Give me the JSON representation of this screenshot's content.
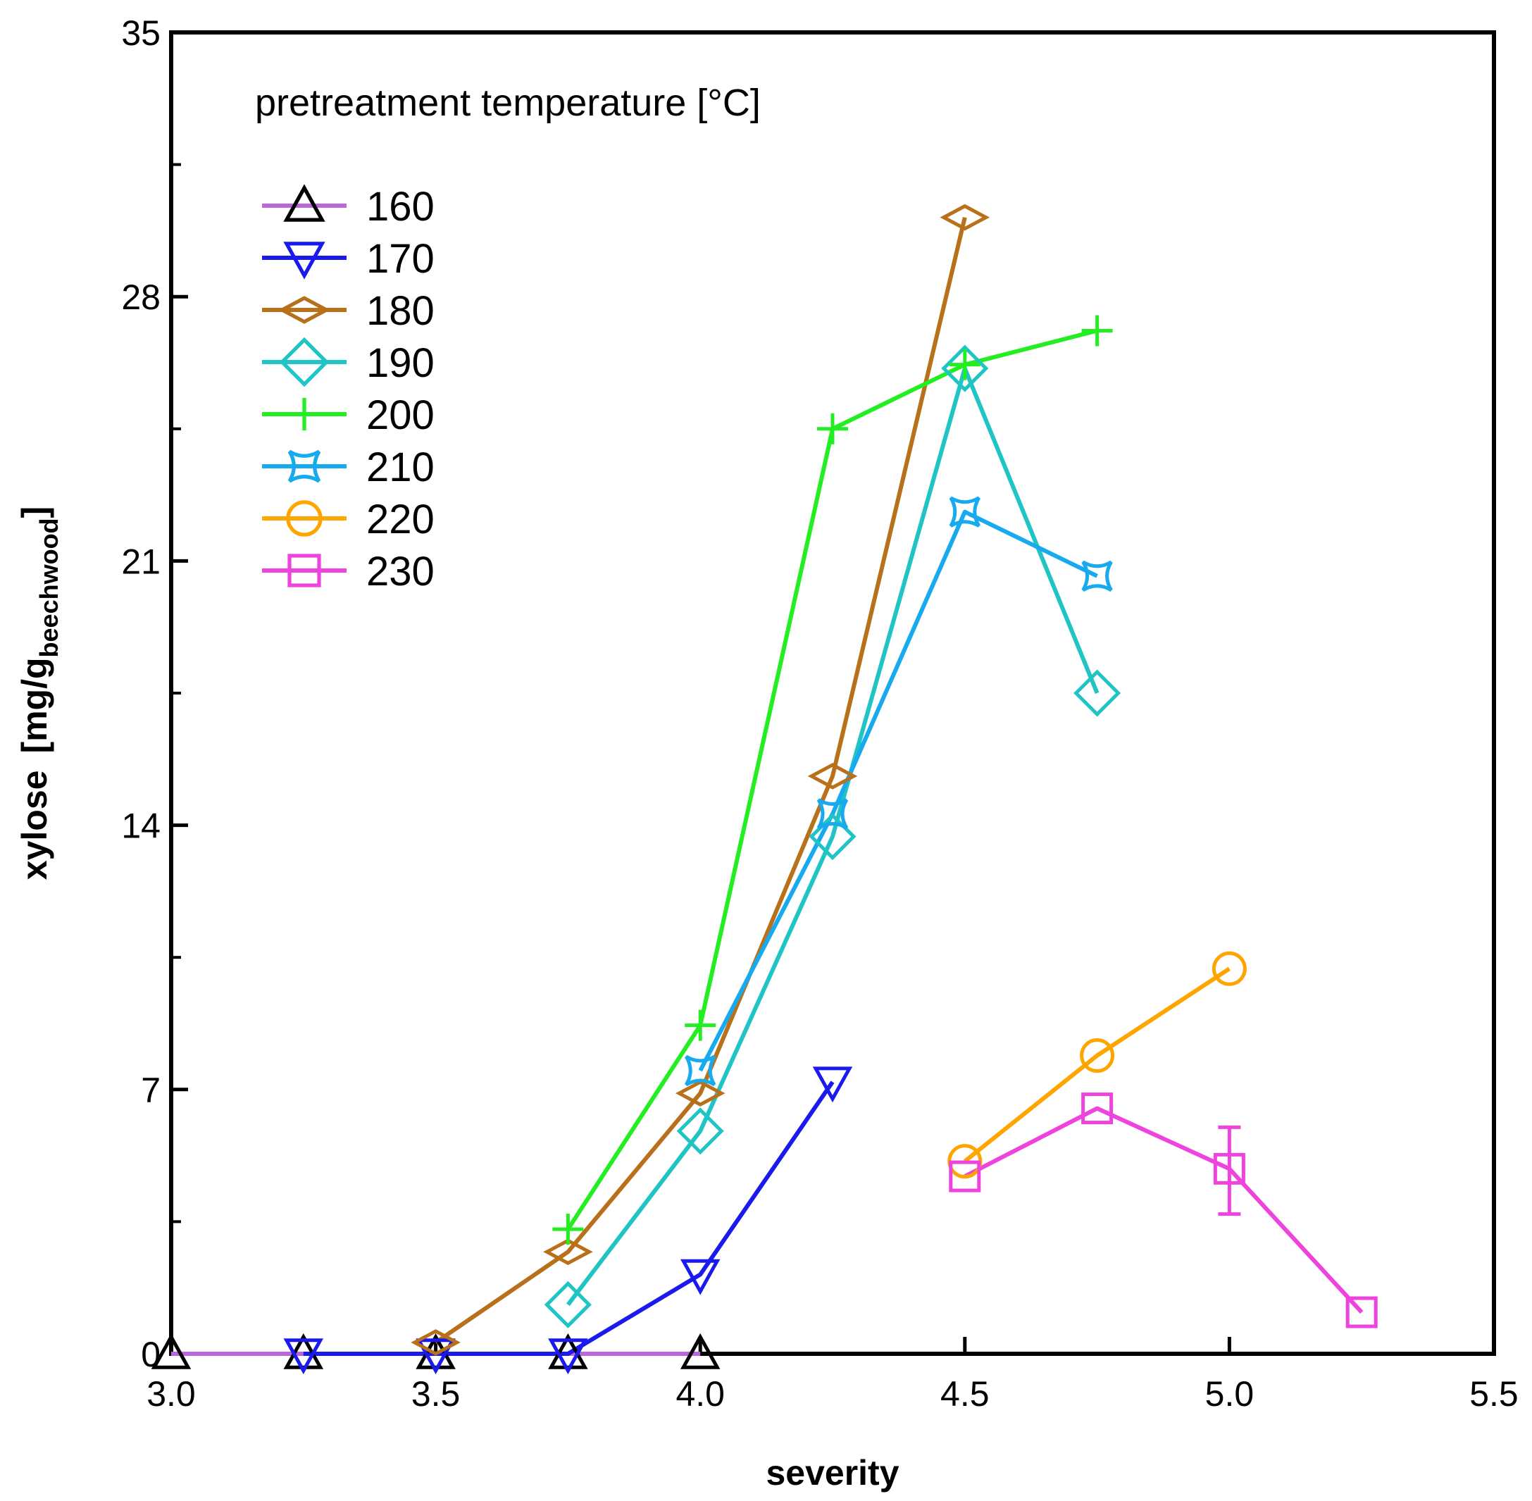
{
  "chart_data": {
    "type": "line",
    "xlabel": "severity",
    "ylabel_main": "xylose",
    "ylabel_unit_open": "[mg/g",
    "ylabel_unit_sub": "beechwood",
    "ylabel_unit_close": "]",
    "xlim": [
      3.0,
      5.5
    ],
    "ylim": [
      0,
      35
    ],
    "x_ticks": [
      3.0,
      3.5,
      4.0,
      4.5,
      5.0,
      5.5
    ],
    "x_tick_labels": [
      "3.0",
      "3.5",
      "4.0",
      "4.5",
      "5.0",
      "5.5"
    ],
    "y_ticks": [
      0,
      7,
      14,
      21,
      28,
      35
    ],
    "y_tick_labels": [
      "0",
      "7",
      "14",
      "21",
      "28",
      "35"
    ],
    "y_minor_ticks": [
      3.5,
      10.5,
      17.5,
      24.5,
      31.5
    ],
    "legend_title": "pretreatment temperature [°C]",
    "legend_position": "top-left",
    "series": [
      {
        "name": "160",
        "color": "#bb66dd",
        "marker_color": "#000000",
        "marker": "triangle-up",
        "x": [
          3.0,
          3.25,
          3.5,
          3.75,
          4.0
        ],
        "y": [
          0,
          0,
          0,
          0,
          0
        ]
      },
      {
        "name": "170",
        "color": "#1a1aee",
        "marker_color": "#1a1aee",
        "marker": "triangle-down",
        "x": [
          3.25,
          3.5,
          3.75,
          4.0,
          4.25
        ],
        "y": [
          0,
          0,
          0,
          2.1,
          7.2
        ]
      },
      {
        "name": "180",
        "color": "#b8701a",
        "marker_color": "#b8701a",
        "marker": "diamond-wide",
        "x": [
          3.5,
          3.75,
          4.0,
          4.25,
          4.5
        ],
        "y": [
          0.3,
          2.7,
          6.9,
          15.3,
          30.1
        ]
      },
      {
        "name": "190",
        "color": "#20c4c4",
        "marker_color": "#20c4c4",
        "marker": "diamond",
        "x": [
          3.75,
          4.0,
          4.25,
          4.5,
          4.75
        ],
        "y": [
          1.3,
          5.9,
          13.7,
          26.1,
          17.5
        ]
      },
      {
        "name": "200",
        "color": "#22ee22",
        "marker_color": "#22ee22",
        "marker": "plus",
        "x": [
          3.75,
          4.0,
          4.25,
          4.5,
          4.75
        ],
        "y": [
          3.3,
          8.7,
          24.5,
          26.2,
          27.1
        ]
      },
      {
        "name": "210",
        "color": "#18aaee",
        "marker_color": "#18aaee",
        "marker": "star4",
        "x": [
          4.0,
          4.25,
          4.5,
          4.75
        ],
        "y": [
          7.5,
          14.3,
          22.3,
          20.6
        ]
      },
      {
        "name": "220",
        "color": "#ffa500",
        "marker_color": "#ffa500",
        "marker": "circle",
        "x": [
          4.5,
          4.75,
          5.0
        ],
        "y": [
          5.1,
          7.9,
          10.2
        ]
      },
      {
        "name": "230",
        "color": "#ee44dd",
        "marker_color": "#ee44dd",
        "marker": "square",
        "x": [
          4.5,
          4.75,
          5.0,
          5.25
        ],
        "y": [
          4.7,
          6.5,
          4.9,
          1.1
        ],
        "error_bars": [
          {
            "x": 5.0,
            "low": 3.7,
            "high": 6.0
          }
        ]
      }
    ]
  }
}
